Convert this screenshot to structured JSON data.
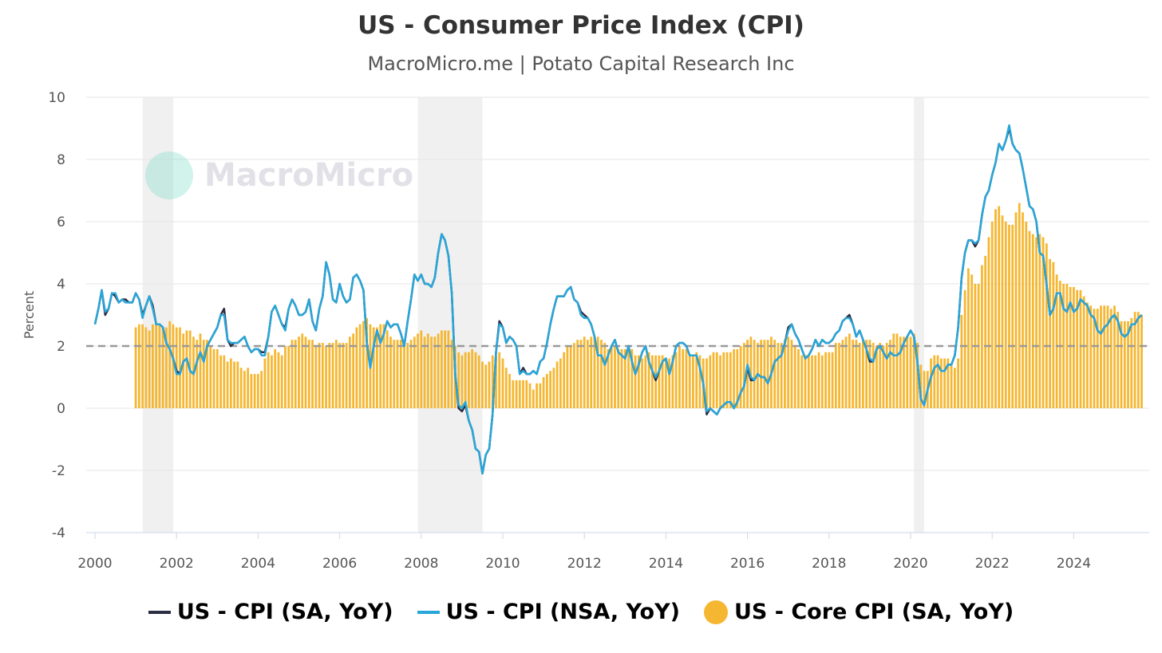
{
  "chart_data": {
    "type": "line+bar",
    "title": "US - Consumer Price Index (CPI)",
    "subtitle": "MacroMicro.me | Potato Capital Research Inc",
    "ylabel": "Percent",
    "xlabel": "",
    "ylim": [
      -4,
      10
    ],
    "yticks": [
      "10",
      "8",
      "6",
      "4",
      "2",
      "0",
      "-2",
      "-4"
    ],
    "xticks": [
      "2000",
      "2002",
      "2004",
      "2006",
      "2008",
      "2010",
      "2012",
      "2014",
      "2016",
      "2018",
      "2020",
      "2022",
      "2024"
    ],
    "xlim": [
      2000,
      2025.95
    ],
    "reference_line": 2,
    "recessions": [
      [
        2001.17,
        2001.92
      ],
      [
        2007.92,
        2009.5
      ],
      [
        2020.08,
        2020.33
      ]
    ],
    "watermark": "MacroMicro",
    "series": [
      {
        "name": "US - CPI (SA, YoY)",
        "type": "line",
        "color": "#2b2d42",
        "start": 2000.0,
        "values": [
          2.7,
          3.2,
          3.8,
          3.0,
          3.2,
          3.7,
          3.6,
          3.4,
          3.5,
          3.5,
          3.4,
          3.4,
          3.7,
          3.5,
          3.0,
          3.3,
          3.6,
          3.3,
          2.7,
          2.7,
          2.6,
          2.1,
          1.9,
          1.6,
          1.2,
          1.1,
          1.5,
          1.6,
          1.2,
          1.1,
          1.5,
          1.8,
          1.5,
          2.0,
          2.2,
          2.4,
          2.6,
          3.0,
          3.2,
          2.2,
          2.0,
          2.1,
          2.1,
          2.2,
          2.3,
          2.0,
          1.8,
          1.9,
          1.9,
          1.8,
          1.8,
          2.3,
          3.1,
          3.3,
          3.0,
          2.7,
          2.6,
          3.2,
          3.5,
          3.3,
          3.0,
          3.0,
          3.1,
          3.5,
          2.8,
          2.5,
          3.2,
          3.6,
          4.7,
          4.3,
          3.5,
          3.4,
          4.0,
          3.6,
          3.4,
          3.5,
          4.2,
          4.3,
          4.1,
          3.8,
          2.1,
          1.3,
          2.0,
          2.5,
          2.1,
          2.4,
          2.8,
          2.6,
          2.7,
          2.7,
          2.4,
          2.0,
          2.8,
          3.5,
          4.3,
          4.1,
          4.3,
          4.0,
          4.0,
          3.9,
          4.2,
          5.0,
          5.6,
          5.4,
          4.9,
          3.7,
          1.1,
          0.0,
          -0.1,
          0.1,
          -0.4,
          -0.7,
          -1.3,
          -1.4,
          -2.1,
          -1.5,
          -1.3,
          -0.2,
          1.8,
          2.8,
          2.6,
          2.1,
          2.3,
          2.2,
          2.0,
          1.1,
          1.3,
          1.1,
          1.1,
          1.2,
          1.1,
          1.5,
          1.6,
          2.1,
          2.7,
          3.2,
          3.6,
          3.6,
          3.6,
          3.8,
          3.9,
          3.5,
          3.4,
          3.1,
          3.0,
          2.9,
          2.7,
          2.3,
          1.7,
          1.7,
          1.4,
          1.7,
          2.0,
          2.2,
          1.8,
          1.7,
          1.6,
          2.0,
          1.5,
          1.1,
          1.4,
          1.8,
          2.0,
          1.5,
          1.2,
          0.9,
          1.2,
          1.5,
          1.6,
          1.1,
          1.5,
          2.0,
          2.1,
          2.1,
          2.0,
          1.7,
          1.7,
          1.7,
          1.3,
          0.8,
          -0.2,
          0.0,
          -0.1,
          -0.2,
          0.0,
          0.1,
          0.2,
          0.2,
          0.0,
          0.2,
          0.5,
          0.7,
          1.3,
          0.9,
          0.9,
          1.1,
          1.0,
          1.0,
          0.8,
          1.1,
          1.5,
          1.6,
          1.7,
          2.1,
          2.6,
          2.7,
          2.4,
          2.2,
          1.9,
          1.6,
          1.7,
          1.9,
          2.2,
          2.0,
          2.2,
          2.1,
          2.1,
          2.2,
          2.4,
          2.5,
          2.8,
          2.9,
          3.0,
          2.7,
          2.3,
          2.5,
          2.2,
          1.9,
          1.5,
          1.5,
          1.9,
          2.0,
          1.8,
          1.6,
          1.8,
          1.7,
          1.7,
          1.8,
          2.1,
          2.3,
          2.5,
          2.3,
          1.5,
          0.3,
          0.1,
          0.6,
          1.0,
          1.3,
          1.4,
          1.2,
          1.2,
          1.4,
          1.4,
          1.7,
          2.6,
          4.2,
          5.0,
          5.4,
          5.4,
          5.2,
          5.4,
          6.2,
          6.8,
          7.0,
          7.5,
          7.9,
          8.5,
          8.3,
          8.6,
          9.0,
          8.5,
          8.3,
          8.2,
          7.7,
          7.1,
          6.5,
          6.4,
          6.0,
          5.0,
          4.9,
          4.0,
          3.0,
          3.2,
          3.7,
          3.7,
          3.2,
          3.1,
          3.4,
          3.1,
          3.2,
          3.5,
          3.4,
          3.3,
          3.0,
          2.9,
          2.5,
          2.4,
          2.6,
          2.7,
          2.9,
          3.0,
          2.8,
          2.4,
          2.3,
          2.4,
          2.7,
          2.7,
          2.9,
          3.0
        ]
      },
      {
        "name": "US - CPI (NSA, YoY)",
        "type": "line",
        "color": "#29a6d9",
        "start": 2000.0,
        "values": [
          2.7,
          3.2,
          3.8,
          3.1,
          3.2,
          3.7,
          3.7,
          3.4,
          3.5,
          3.4,
          3.4,
          3.4,
          3.7,
          3.5,
          2.9,
          3.3,
          3.6,
          3.2,
          2.7,
          2.7,
          2.6,
          2.1,
          1.9,
          1.6,
          1.1,
          1.1,
          1.5,
          1.6,
          1.2,
          1.1,
          1.5,
          1.8,
          1.5,
          2.0,
          2.2,
          2.4,
          2.6,
          3.0,
          3.0,
          2.2,
          2.1,
          2.1,
          2.1,
          2.2,
          2.3,
          2.0,
          1.8,
          1.9,
          1.9,
          1.7,
          1.7,
          2.3,
          3.1,
          3.3,
          3.0,
          2.7,
          2.5,
          3.2,
          3.5,
          3.3,
          3.0,
          3.0,
          3.1,
          3.5,
          2.8,
          2.5,
          3.2,
          3.6,
          4.7,
          4.3,
          3.5,
          3.4,
          4.0,
          3.6,
          3.4,
          3.5,
          4.2,
          4.3,
          4.1,
          3.8,
          2.1,
          1.3,
          2.0,
          2.5,
          2.1,
          2.4,
          2.8,
          2.6,
          2.7,
          2.7,
          2.4,
          2.0,
          2.8,
          3.5,
          4.3,
          4.1,
          4.3,
          4.0,
          4.0,
          3.9,
          4.2,
          5.0,
          5.6,
          5.4,
          4.9,
          3.7,
          1.1,
          0.1,
          0.0,
          0.2,
          -0.4,
          -0.7,
          -1.3,
          -1.4,
          -2.1,
          -1.5,
          -1.3,
          -0.2,
          1.8,
          2.7,
          2.6,
          2.1,
          2.3,
          2.2,
          2.0,
          1.1,
          1.2,
          1.1,
          1.1,
          1.2,
          1.1,
          1.5,
          1.6,
          2.1,
          2.7,
          3.2,
          3.6,
          3.6,
          3.6,
          3.8,
          3.9,
          3.5,
          3.4,
          3.0,
          2.9,
          2.9,
          2.7,
          2.3,
          1.7,
          1.7,
          1.4,
          1.7,
          2.0,
          2.2,
          1.8,
          1.7,
          1.6,
          2.0,
          1.5,
          1.1,
          1.4,
          1.8,
          2.0,
          1.5,
          1.2,
          1.0,
          1.2,
          1.5,
          1.6,
          1.1,
          1.5,
          2.0,
          2.1,
          2.1,
          2.0,
          1.7,
          1.7,
          1.7,
          1.3,
          0.8,
          -0.1,
          0.0,
          -0.1,
          -0.2,
          0.0,
          0.1,
          0.2,
          0.2,
          0.0,
          0.2,
          0.5,
          0.7,
          1.4,
          1.0,
          0.9,
          1.1,
          1.0,
          1.0,
          0.8,
          1.1,
          1.5,
          1.6,
          1.7,
          2.1,
          2.5,
          2.7,
          2.4,
          2.2,
          1.9,
          1.6,
          1.7,
          1.9,
          2.2,
          2.0,
          2.2,
          2.1,
          2.1,
          2.2,
          2.4,
          2.5,
          2.8,
          2.9,
          2.9,
          2.7,
          2.3,
          2.5,
          2.2,
          1.9,
          1.6,
          1.5,
          1.9,
          2.0,
          1.8,
          1.6,
          1.8,
          1.7,
          1.7,
          1.8,
          2.1,
          2.3,
          2.5,
          2.3,
          1.5,
          0.3,
          0.1,
          0.6,
          1.0,
          1.3,
          1.4,
          1.2,
          1.2,
          1.4,
          1.4,
          1.7,
          2.6,
          4.2,
          5.0,
          5.4,
          5.4,
          5.3,
          5.4,
          6.2,
          6.8,
          7.0,
          7.5,
          7.9,
          8.5,
          8.3,
          8.6,
          9.1,
          8.5,
          8.3,
          8.2,
          7.7,
          7.1,
          6.5,
          6.4,
          6.0,
          5.0,
          4.9,
          4.0,
          3.0,
          3.2,
          3.7,
          3.7,
          3.2,
          3.1,
          3.4,
          3.1,
          3.2,
          3.5,
          3.4,
          3.3,
          3.0,
          2.9,
          2.5,
          2.4,
          2.6,
          2.7,
          2.9,
          3.0,
          2.8,
          2.4,
          2.3,
          2.4,
          2.7,
          2.7,
          2.9,
          3.0
        ]
      },
      {
        "name": "US - Core CPI (SA, YoY)",
        "type": "bar",
        "color": "#f5b731",
        "start": 2001.0,
        "values": [
          2.6,
          2.7,
          2.7,
          2.6,
          2.5,
          2.7,
          2.7,
          2.7,
          2.6,
          2.6,
          2.8,
          2.7,
          2.6,
          2.6,
          2.4,
          2.5,
          2.5,
          2.3,
          2.2,
          2.4,
          2.2,
          2.2,
          2.0,
          1.9,
          1.9,
          1.7,
          1.7,
          1.5,
          1.6,
          1.5,
          1.5,
          1.3,
          1.2,
          1.3,
          1.1,
          1.1,
          1.1,
          1.2,
          1.6,
          1.8,
          1.7,
          1.9,
          1.8,
          1.7,
          2.0,
          2.0,
          2.2,
          2.2,
          2.3,
          2.4,
          2.3,
          2.2,
          2.2,
          2.0,
          2.1,
          2.1,
          2.0,
          2.1,
          2.1,
          2.2,
          2.1,
          2.1,
          2.1,
          2.3,
          2.4,
          2.6,
          2.7,
          2.8,
          2.9,
          2.7,
          2.6,
          2.6,
          2.7,
          2.7,
          2.5,
          2.3,
          2.2,
          2.2,
          2.2,
          2.1,
          2.1,
          2.2,
          2.3,
          2.4,
          2.5,
          2.3,
          2.4,
          2.3,
          2.3,
          2.4,
          2.5,
          2.5,
          2.5,
          2.2,
          2.0,
          1.8,
          1.7,
          1.8,
          1.8,
          1.9,
          1.8,
          1.7,
          1.5,
          1.4,
          1.5,
          1.7,
          1.7,
          1.8,
          1.6,
          1.3,
          1.1,
          0.9,
          0.9,
          0.9,
          0.9,
          0.9,
          0.8,
          0.6,
          0.8,
          0.8,
          1.0,
          1.1,
          1.2,
          1.3,
          1.5,
          1.6,
          1.8,
          2.0,
          2.0,
          2.1,
          2.2,
          2.2,
          2.3,
          2.2,
          2.3,
          2.3,
          2.3,
          2.2,
          2.1,
          1.9,
          2.0,
          2.0,
          1.9,
          1.9,
          1.9,
          2.0,
          1.9,
          1.7,
          1.7,
          1.6,
          1.7,
          1.8,
          1.7,
          1.7,
          1.7,
          1.7,
          1.6,
          1.6,
          1.7,
          1.8,
          2.0,
          1.9,
          1.9,
          1.7,
          1.7,
          1.8,
          1.7,
          1.6,
          1.6,
          1.7,
          1.8,
          1.8,
          1.7,
          1.8,
          1.8,
          1.8,
          1.9,
          1.9,
          2.0,
          2.1,
          2.2,
          2.3,
          2.2,
          2.1,
          2.2,
          2.2,
          2.2,
          2.3,
          2.2,
          2.1,
          2.1,
          2.2,
          2.3,
          2.2,
          2.0,
          1.9,
          1.7,
          1.7,
          1.7,
          1.7,
          1.7,
          1.8,
          1.7,
          1.8,
          1.8,
          1.8,
          2.1,
          2.1,
          2.2,
          2.3,
          2.4,
          2.2,
          2.2,
          2.1,
          2.2,
          2.2,
          2.2,
          2.1,
          2.0,
          2.1,
          2.0,
          2.1,
          2.2,
          2.4,
          2.4,
          2.3,
          2.3,
          2.3,
          2.3,
          2.4,
          2.1,
          1.4,
          1.2,
          1.2,
          1.6,
          1.7,
          1.7,
          1.6,
          1.6,
          1.6,
          1.4,
          1.3,
          1.6,
          3.0,
          3.8,
          4.5,
          4.3,
          4.0,
          4.0,
          4.6,
          4.9,
          5.5,
          6.0,
          6.4,
          6.5,
          6.2,
          6.0,
          5.9,
          5.9,
          6.3,
          6.6,
          6.3,
          6.0,
          5.7,
          5.6,
          5.5,
          5.6,
          5.5,
          5.3,
          4.8,
          4.7,
          4.3,
          4.1,
          4.0,
          4.0,
          3.9,
          3.9,
          3.8,
          3.8,
          3.6,
          3.4,
          3.3,
          3.2,
          3.2,
          3.3,
          3.3,
          3.3,
          3.2,
          3.3,
          3.1,
          2.8,
          2.8,
          2.8,
          2.9,
          3.1,
          3.1,
          3.0
        ]
      }
    ]
  }
}
